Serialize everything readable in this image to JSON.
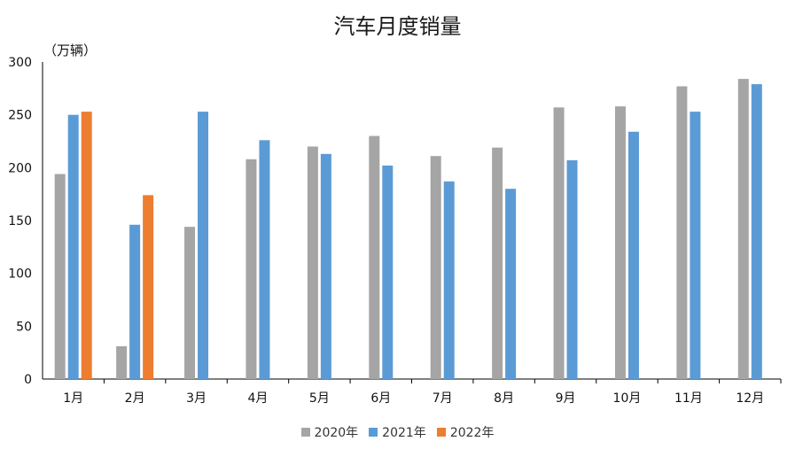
{
  "chart_data": {
    "type": "bar",
    "title": "汽车月度销量",
    "unit_label": "（万辆）",
    "categories": [
      "1月",
      "2月",
      "3月",
      "4月",
      "5月",
      "6月",
      "7月",
      "8月",
      "9月",
      "10月",
      "11月",
      "12月"
    ],
    "series": [
      {
        "name": "2020年",
        "color": "#a5a5a5",
        "values": [
          194,
          31,
          144,
          208,
          220,
          230,
          211,
          219,
          257,
          258,
          277,
          284
        ]
      },
      {
        "name": "2021年",
        "color": "#5b9bd5",
        "values": [
          250,
          146,
          253,
          226,
          213,
          202,
          187,
          180,
          207,
          234,
          253,
          279
        ]
      },
      {
        "name": "2022年",
        "color": "#ed7d31",
        "values": [
          253,
          174,
          null,
          null,
          null,
          null,
          null,
          null,
          null,
          null,
          null,
          null
        ]
      }
    ],
    "y_ticks": [
      "0",
      "50",
      "100",
      "150",
      "200",
      "250",
      "300"
    ],
    "ylim": [
      0,
      300
    ],
    "grid": false,
    "legend_position": "bottom"
  }
}
